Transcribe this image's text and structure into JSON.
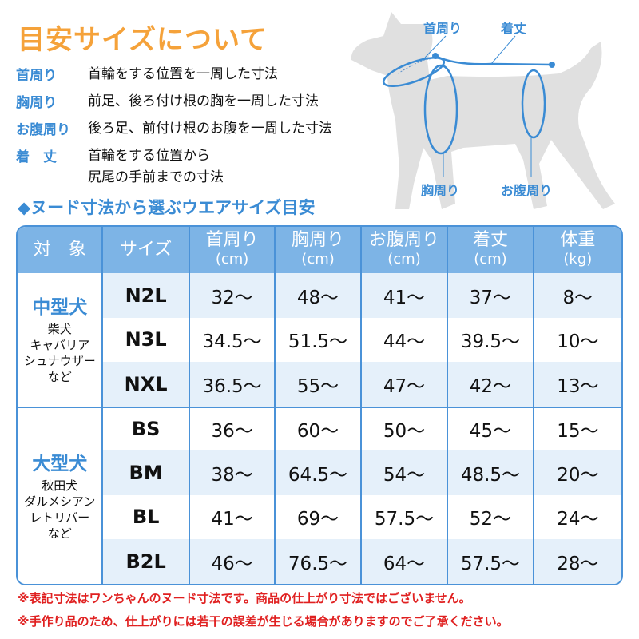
{
  "title": "目安サイズについて",
  "definitions": [
    {
      "term": "首周り",
      "desc": "首輪をする位置を一周した寸法"
    },
    {
      "term": "胸周り",
      "desc": "前足、後ろ付け根の胸を一周した寸法"
    },
    {
      "term": "お腹周り",
      "desc": "後ろ足、前付け根のお腹を一周した寸法"
    },
    {
      "term": "着　丈",
      "desc": "首輪をする位置から",
      "desc2": "尻尾の手前までの寸法"
    }
  ],
  "subtitle": "◆ヌード寸法から選ぶウエアサイズ目安",
  "diagram": {
    "neck": "首周り",
    "length": "着丈",
    "chest": "胸周り",
    "belly": "お腹周り"
  },
  "table": {
    "headers": [
      {
        "label": "対　象"
      },
      {
        "label": "サイズ"
      },
      {
        "label": "首周り",
        "unit": "(cm)"
      },
      {
        "label": "胸周り",
        "unit": "(cm)"
      },
      {
        "label": "お腹周り",
        "unit": "(cm)"
      },
      {
        "label": "着丈",
        "unit": "(cm)"
      },
      {
        "label": "体重",
        "unit": "(kg)"
      }
    ],
    "groups": [
      {
        "name": "中型犬",
        "breeds": [
          "柴犬",
          "キャバリア",
          "シュナウザー",
          "など"
        ],
        "rows": [
          [
            "N2L",
            "32～",
            "48～",
            "41～",
            "37～",
            "8～"
          ],
          [
            "N3L",
            "34.5～",
            "51.5～",
            "44～",
            "39.5～",
            "10～"
          ],
          [
            "NXL",
            "36.5～",
            "55～",
            "47～",
            "42～",
            "13～"
          ]
        ]
      },
      {
        "name": "大型犬",
        "breeds": [
          "秋田犬",
          "ダルメシアン",
          "レトリバー",
          "など"
        ],
        "rows": [
          [
            "BS",
            "36～",
            "60～",
            "50～",
            "45～",
            "15～"
          ],
          [
            "BM",
            "38～",
            "64.5～",
            "54～",
            "48.5～",
            "20～"
          ],
          [
            "BL",
            "41～",
            "69～",
            "57.5～",
            "52～",
            "24～"
          ],
          [
            "B2L",
            "46～",
            "76.5～",
            "64～",
            "57.5～",
            "28～"
          ]
        ]
      }
    ]
  },
  "notes": [
    "※表記寸法はワンちゃんのヌード寸法です。商品の仕上がり寸法ではございません。",
    "※手作り品のため、仕上がりには若干の誤差が生じる場合がありますのでご了承ください。"
  ]
}
